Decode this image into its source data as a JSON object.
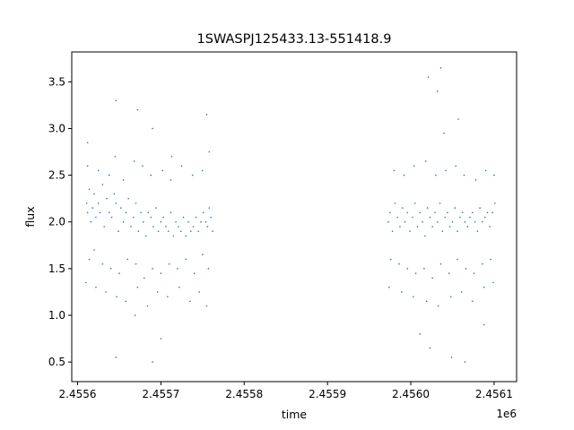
{
  "chart_data": {
    "type": "scatter",
    "title": "1SWASPJ125433.13-551418.9",
    "xlabel": "time",
    "ylabel": "flux",
    "x_offset_label": "1e6",
    "xlim": [
      2455593,
      2456127
    ],
    "ylim": [
      0.29,
      3.82
    ],
    "x_ticks": [
      {
        "value": 2455600,
        "label": "2.4556"
      },
      {
        "value": 2455700,
        "label": "2.4557"
      },
      {
        "value": 2455800,
        "label": "2.4558"
      },
      {
        "value": 2455900,
        "label": "2.4559"
      },
      {
        "value": 2456000,
        "label": "2.4560"
      },
      {
        "value": 2456100,
        "label": "2.4561"
      }
    ],
    "y_ticks": [
      {
        "value": 0.5,
        "label": "0.5"
      },
      {
        "value": 1.0,
        "label": "1.0"
      },
      {
        "value": 1.5,
        "label": "1.5"
      },
      {
        "value": 2.0,
        "label": "2.0"
      },
      {
        "value": 2.5,
        "label": "2.5"
      },
      {
        "value": 3.0,
        "label": "3.0"
      },
      {
        "value": 3.5,
        "label": "3.5"
      }
    ],
    "grid": false,
    "marker_color": "#1f77b4",
    "series": [
      {
        "x": [
          2455611,
          2455612,
          2455614,
          2455616,
          2455618,
          2455620,
          2455622,
          2455625,
          2455627,
          2455630,
          2455632,
          2455635,
          2455638,
          2455641,
          2455644,
          2455646,
          2455649,
          2455652,
          2455655,
          2455658,
          2455661,
          2455664,
          2455667,
          2455670,
          2455673,
          2455676,
          2455679,
          2455682,
          2455685,
          2455688,
          2455691,
          2455694,
          2455697,
          2455700,
          2455703,
          2455706,
          2455709,
          2455712,
          2455715,
          2455718,
          2455721,
          2455724,
          2455727,
          2455730,
          2455733,
          2455736,
          2455739,
          2455742,
          2455745,
          2455748,
          2455751,
          2455754,
          2455756,
          2455758,
          2455760,
          2455762,
          2455614,
          2455620,
          2455630,
          2455640,
          2455650,
          2455660,
          2455670,
          2455680,
          2455690,
          2455700,
          2455710,
          2455720,
          2455730,
          2455740,
          2455750,
          2455757,
          2455612,
          2455625,
          2455638,
          2455645,
          2455655,
          2455668,
          2455678,
          2455688,
          2455702,
          2455712,
          2455725,
          2455738,
          2455750,
          2455758,
          2455610,
          2455622,
          2455634,
          2455647,
          2455658,
          2455672,
          2455684,
          2455696,
          2455708,
          2455722,
          2455735,
          2455746,
          2455755,
          2455612,
          2455646,
          2455672,
          2455690,
          2455713,
          2455755,
          2455646,
          2455690,
          2455669,
          2455700,
          2455973,
          2455975,
          2455978,
          2455981,
          2455984,
          2455987,
          2455990,
          2455993,
          2455996,
          2455999,
          2456002,
          2456005,
          2456008,
          2456011,
          2456014,
          2456017,
          2456020,
          2456023,
          2456026,
          2456029,
          2456032,
          2456035,
          2456038,
          2456041,
          2456044,
          2456047,
          2456050,
          2456053,
          2456056,
          2456059,
          2456062,
          2456065,
          2456068,
          2456071,
          2456074,
          2456077,
          2456080,
          2456083,
          2456086,
          2456089,
          2456092,
          2456095,
          2456098,
          2456101,
          2455976,
          2455986,
          2455996,
          2456006,
          2456016,
          2456026,
          2456036,
          2456046,
          2456056,
          2456066,
          2456076,
          2456086,
          2456096,
          2455980,
          2455992,
          2456004,
          2456018,
          2456030,
          2456042,
          2456054,
          2456064,
          2456078,
          2456090,
          2456100,
          2455974,
          2455989,
          2456003,
          2456019,
          2456033,
          2456048,
          2456061,
          2456074,
          2456088,
          2456099,
          2456021,
          2456032,
          2456057,
          2456040,
          2456023,
          2456049,
          2456065,
          2456011,
          2456088,
          2456036
        ],
        "y": [
          2.2,
          2.1,
          2.35,
          2.0,
          2.15,
          2.3,
          2.05,
          2.2,
          2.1,
          2.4,
          1.95,
          2.25,
          2.1,
          2.05,
          2.3,
          2.2,
          1.9,
          2.15,
          2.0,
          2.1,
          2.25,
          1.95,
          2.05,
          2.2,
          1.9,
          2.1,
          2.0,
          1.85,
          2.1,
          2.05,
          1.95,
          2.15,
          1.9,
          2.0,
          2.05,
          1.95,
          1.9,
          2.1,
          1.85,
          2.0,
          1.95,
          1.9,
          2.05,
          1.85,
          2.0,
          1.9,
          1.95,
          2.05,
          1.9,
          2.0,
          2.1,
          2.0,
          1.95,
          2.15,
          2.05,
          1.9,
          1.6,
          1.7,
          1.55,
          1.5,
          1.45,
          1.6,
          1.55,
          1.4,
          1.5,
          1.45,
          1.55,
          1.5,
          1.6,
          1.45,
          1.65,
          1.5,
          2.6,
          2.55,
          2.5,
          2.7,
          2.45,
          2.65,
          2.6,
          2.5,
          2.55,
          2.45,
          2.6,
          2.5,
          2.55,
          2.75,
          1.35,
          1.3,
          1.25,
          1.2,
          1.15,
          1.3,
          1.1,
          1.25,
          1.2,
          1.3,
          1.15,
          1.25,
          1.1,
          2.85,
          3.3,
          3.2,
          3.0,
          2.7,
          3.15,
          0.55,
          0.5,
          1.0,
          0.75,
          2.0,
          2.1,
          1.9,
          2.2,
          2.05,
          1.95,
          2.15,
          2.0,
          2.1,
          1.9,
          2.05,
          2.2,
          1.95,
          2.1,
          2.0,
          1.85,
          2.15,
          2.05,
          1.95,
          2.1,
          2.0,
          2.2,
          1.9,
          2.05,
          2.1,
          1.95,
          2.0,
          2.15,
          1.9,
          2.05,
          2.1,
          2.0,
          1.95,
          2.05,
          2.1,
          2.0,
          1.9,
          2.15,
          2.0,
          2.05,
          2.1,
          1.95,
          2.1,
          2.2,
          1.6,
          1.55,
          1.5,
          1.45,
          1.5,
          1.4,
          1.55,
          1.45,
          1.6,
          1.5,
          1.45,
          1.55,
          1.6,
          2.55,
          2.5,
          2.6,
          2.65,
          2.5,
          2.55,
          2.6,
          2.5,
          2.45,
          2.55,
          2.5,
          1.3,
          1.25,
          1.2,
          1.15,
          1.1,
          1.2,
          1.25,
          1.15,
          1.3,
          1.35,
          3.55,
          3.4,
          3.1,
          2.95,
          0.65,
          0.55,
          0.5,
          0.8,
          0.9,
          3.65
        ]
      }
    ]
  }
}
